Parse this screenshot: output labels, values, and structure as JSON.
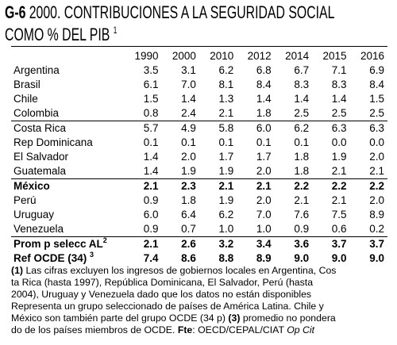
{
  "header": {
    "code": "G-6",
    "title_line1": "2000. CONTRIBUCIONES A LA SEGURIDAD SOCIAL",
    "title_line2": "COMO % DEL PIB",
    "title_sup": "1"
  },
  "table": {
    "years": [
      "1990",
      "2000",
      "2010",
      "2012",
      "2014",
      "2015",
      "2016"
    ],
    "rows": [
      {
        "name": "Argentina",
        "values": [
          "3.5",
          "3.1",
          "6.2",
          "6.8",
          "6.7",
          "7.1",
          "6.9"
        ]
      },
      {
        "name": "Brasil",
        "values": [
          "6.1",
          "7.0",
          "8.1",
          "8.4",
          "8.3",
          "8.3",
          "8.4"
        ]
      },
      {
        "name": "Chile",
        "values": [
          "1.5",
          "1.4",
          "1.3",
          "1.4",
          "1.4",
          "1.4",
          "1.5"
        ]
      },
      {
        "name": "Colombia",
        "values": [
          "0.8",
          "2.4",
          "2.1",
          "1.8",
          "2.5",
          "2.5",
          "2.5"
        ]
      },
      {
        "name": "Costa Rica",
        "values": [
          "5.7",
          "4.9",
          "5.8",
          "6.0",
          "6.2",
          "6.3",
          "6.3"
        ]
      },
      {
        "name": "Rep Dominicana",
        "values": [
          "0.1",
          "0.1",
          "0.1",
          "0.1",
          "0.1",
          "0.0",
          "0.0"
        ]
      },
      {
        "name": "El Salvador",
        "values": [
          "1.4",
          "2.0",
          "1.7",
          "1.7",
          "1.8",
          "1.9",
          "2.0"
        ]
      },
      {
        "name": "Guatemala",
        "values": [
          "1.4",
          "1.9",
          "1.9",
          "2.0",
          "1.8",
          "2.1",
          "2.1"
        ]
      },
      {
        "name": "México",
        "values": [
          "2.1",
          "2.3",
          "2.1",
          "2.1",
          "2.2",
          "2.2",
          "2.2"
        ]
      },
      {
        "name": "Perú",
        "values": [
          "0.9",
          "1.8",
          "1.9",
          "2.0",
          "2.1",
          "2.1",
          "2.0"
        ]
      },
      {
        "name": "Uruguay",
        "values": [
          "6.0",
          "6.4",
          "6.2",
          "7.0",
          "7.6",
          "7.5",
          "8.9"
        ]
      },
      {
        "name": "Venezuela",
        "values": [
          "0.9",
          "0.7",
          "1.0",
          "1.0",
          "0.9",
          "0.6",
          "0.2"
        ]
      },
      {
        "name": "Prom p selecc AL",
        "sup": "2",
        "values": [
          "2.1",
          "2.6",
          "3.2",
          "3.4",
          "3.6",
          "3.7",
          "3.7"
        ]
      },
      {
        "name": "Ref OCDE (34)",
        "sup": "3",
        "values": [
          "7.4",
          "8.6",
          "8.8",
          "8.9",
          "9.0",
          "9.0",
          "9.0"
        ]
      }
    ]
  },
  "notes": {
    "line1_mark": "(1)",
    "line1": " Las cifras excluyen los ingresos de gobiernos locales en Argentina, Cos",
    "line2": "ta Rica (hasta 1997), República Dominicana, El Salvador, Perú (hasta",
    "line3": "2004), Uruguay y Venezuela dado que los datos no están disponibles",
    "line4": "Representa un grupo seleccionado de países de América Latina. Chile y",
    "line5_a": "México son también parte del grupo OCDE (34 p) ",
    "line5_mark": "(3)",
    "line5_b": " promedio no pondera",
    "line6_a": "do de los países miembros de OCDE. ",
    "line6_fte": "Fte",
    "line6_b": ": OECD/CEPAL/CIAT  ",
    "line6_opcit": "Op Cit"
  }
}
